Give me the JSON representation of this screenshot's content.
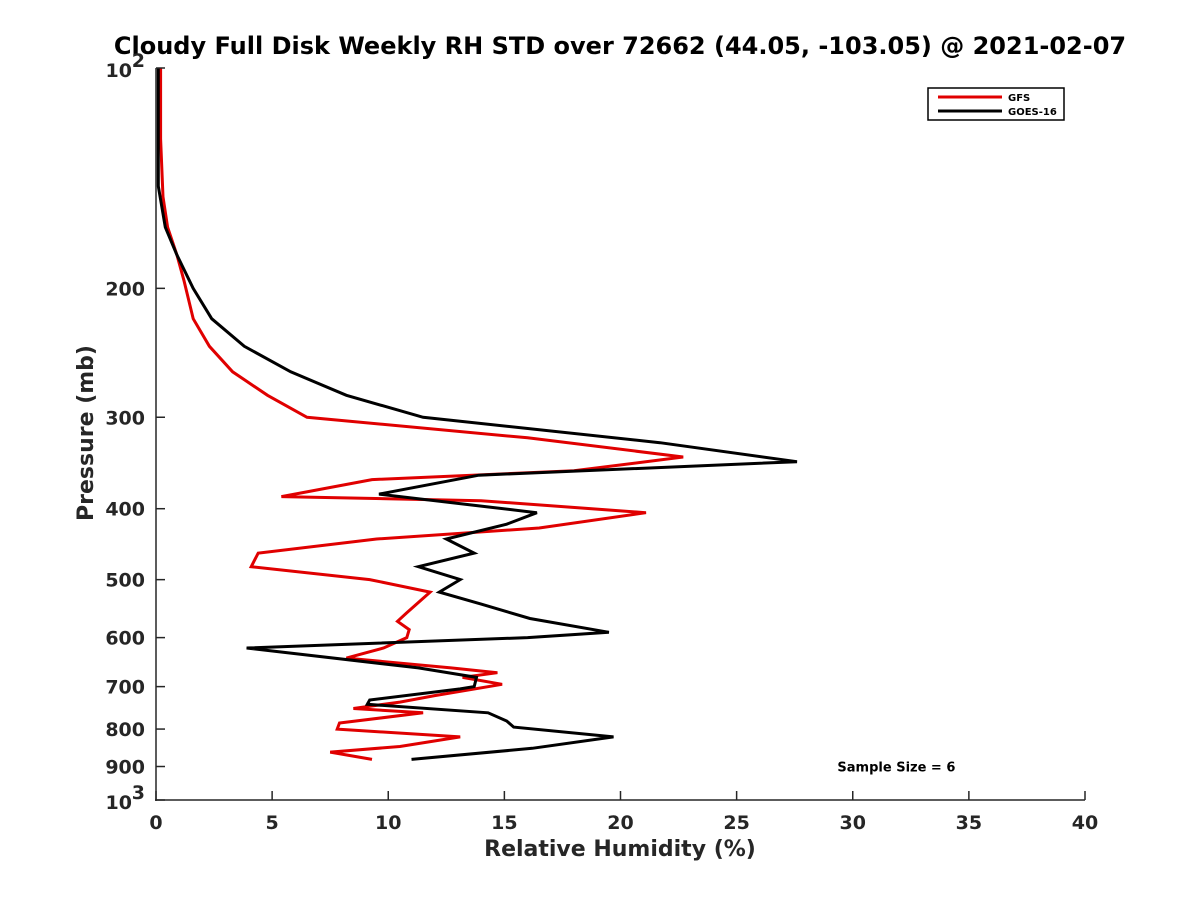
{
  "chart_data": {
    "type": "line",
    "title": "Cloudy Full Disk Weekly RH STD over 72662 (44.05, -103.05) @ 2021-02-07",
    "xlabel": "Relative Humidity (%)",
    "ylabel": "Pressure (mb)",
    "xlim": [
      0,
      40
    ],
    "ylim": [
      100,
      1000
    ],
    "y_scale": "log",
    "y_reversed": true,
    "grid": false,
    "legend_position": "top-right",
    "x_ticks": [
      "0",
      "5",
      "10",
      "15",
      "20",
      "25",
      "30",
      "35",
      "40"
    ],
    "y_ticks": [
      {
        "value": 100,
        "base": "10",
        "exp": "2"
      },
      {
        "value": 200,
        "label": "200"
      },
      {
        "value": 300,
        "label": "300"
      },
      {
        "value": 400,
        "label": "400"
      },
      {
        "value": 500,
        "label": "500"
      },
      {
        "value": 600,
        "label": "600"
      },
      {
        "value": 700,
        "label": "700"
      },
      {
        "value": 800,
        "label": "800"
      },
      {
        "value": 900,
        "label": "900"
      },
      {
        "value": 1000,
        "base": "10",
        "exp": "3"
      }
    ],
    "series": [
      {
        "name": "GFS",
        "color": "#e00000",
        "points": [
          [
            0.2,
            100
          ],
          [
            0.2,
            125
          ],
          [
            0.3,
            150
          ],
          [
            0.5,
            165
          ],
          [
            0.9,
            180
          ],
          [
            1.2,
            195
          ],
          [
            1.6,
            220
          ],
          [
            2.3,
            240
          ],
          [
            3.3,
            260
          ],
          [
            4.8,
            280
          ],
          [
            6.5,
            300
          ],
          [
            16.0,
            320
          ],
          [
            22.7,
            340
          ],
          [
            18.0,
            355
          ],
          [
            9.3,
            365
          ],
          [
            5.4,
            385
          ],
          [
            14.0,
            390
          ],
          [
            21.1,
            405
          ],
          [
            16.5,
            425
          ],
          [
            9.5,
            440
          ],
          [
            4.4,
            460
          ],
          [
            4.1,
            480
          ],
          [
            9.2,
            500
          ],
          [
            11.8,
            520
          ],
          [
            10.8,
            555
          ],
          [
            10.4,
            570
          ],
          [
            10.9,
            585
          ],
          [
            10.8,
            600
          ],
          [
            9.8,
            620
          ],
          [
            8.2,
            640
          ],
          [
            12.7,
            660
          ],
          [
            14.7,
            670
          ],
          [
            13.2,
            680
          ],
          [
            14.9,
            695
          ],
          [
            12.0,
            720
          ],
          [
            10.5,
            735
          ],
          [
            8.5,
            750
          ],
          [
            11.5,
            760
          ],
          [
            7.9,
            785
          ],
          [
            7.8,
            800
          ],
          [
            13.1,
            820
          ],
          [
            10.5,
            845
          ],
          [
            7.5,
            860
          ],
          [
            9.3,
            880
          ]
        ]
      },
      {
        "name": "GOES-16",
        "color": "#000000",
        "points": [
          [
            0.1,
            100
          ],
          [
            0.1,
            125
          ],
          [
            0.1,
            145
          ],
          [
            0.4,
            165
          ],
          [
            0.9,
            180
          ],
          [
            1.6,
            200
          ],
          [
            2.4,
            220
          ],
          [
            3.8,
            240
          ],
          [
            5.8,
            260
          ],
          [
            8.2,
            280
          ],
          [
            11.5,
            300
          ],
          [
            21.7,
            325
          ],
          [
            27.6,
            345
          ],
          [
            13.9,
            360
          ],
          [
            9.6,
            382
          ],
          [
            16.4,
            405
          ],
          [
            15.1,
            420
          ],
          [
            12.5,
            440
          ],
          [
            13.7,
            460
          ],
          [
            11.3,
            480
          ],
          [
            13.1,
            500
          ],
          [
            12.2,
            520
          ],
          [
            14.0,
            540
          ],
          [
            16.1,
            565
          ],
          [
            19.5,
            590
          ],
          [
            16.0,
            600
          ],
          [
            3.9,
            620
          ],
          [
            11.3,
            660
          ],
          [
            13.8,
            680
          ],
          [
            13.7,
            700
          ],
          [
            13.1,
            705
          ],
          [
            9.2,
            730
          ],
          [
            9.1,
            740
          ],
          [
            14.3,
            760
          ],
          [
            15.1,
            780
          ],
          [
            15.4,
            795
          ],
          [
            19.7,
            820
          ],
          [
            16.2,
            850
          ],
          [
            11.0,
            880
          ]
        ]
      }
    ],
    "annotations": [
      {
        "text": "Sample Size = 6",
        "x": 33.0,
        "y": 900
      }
    ]
  }
}
